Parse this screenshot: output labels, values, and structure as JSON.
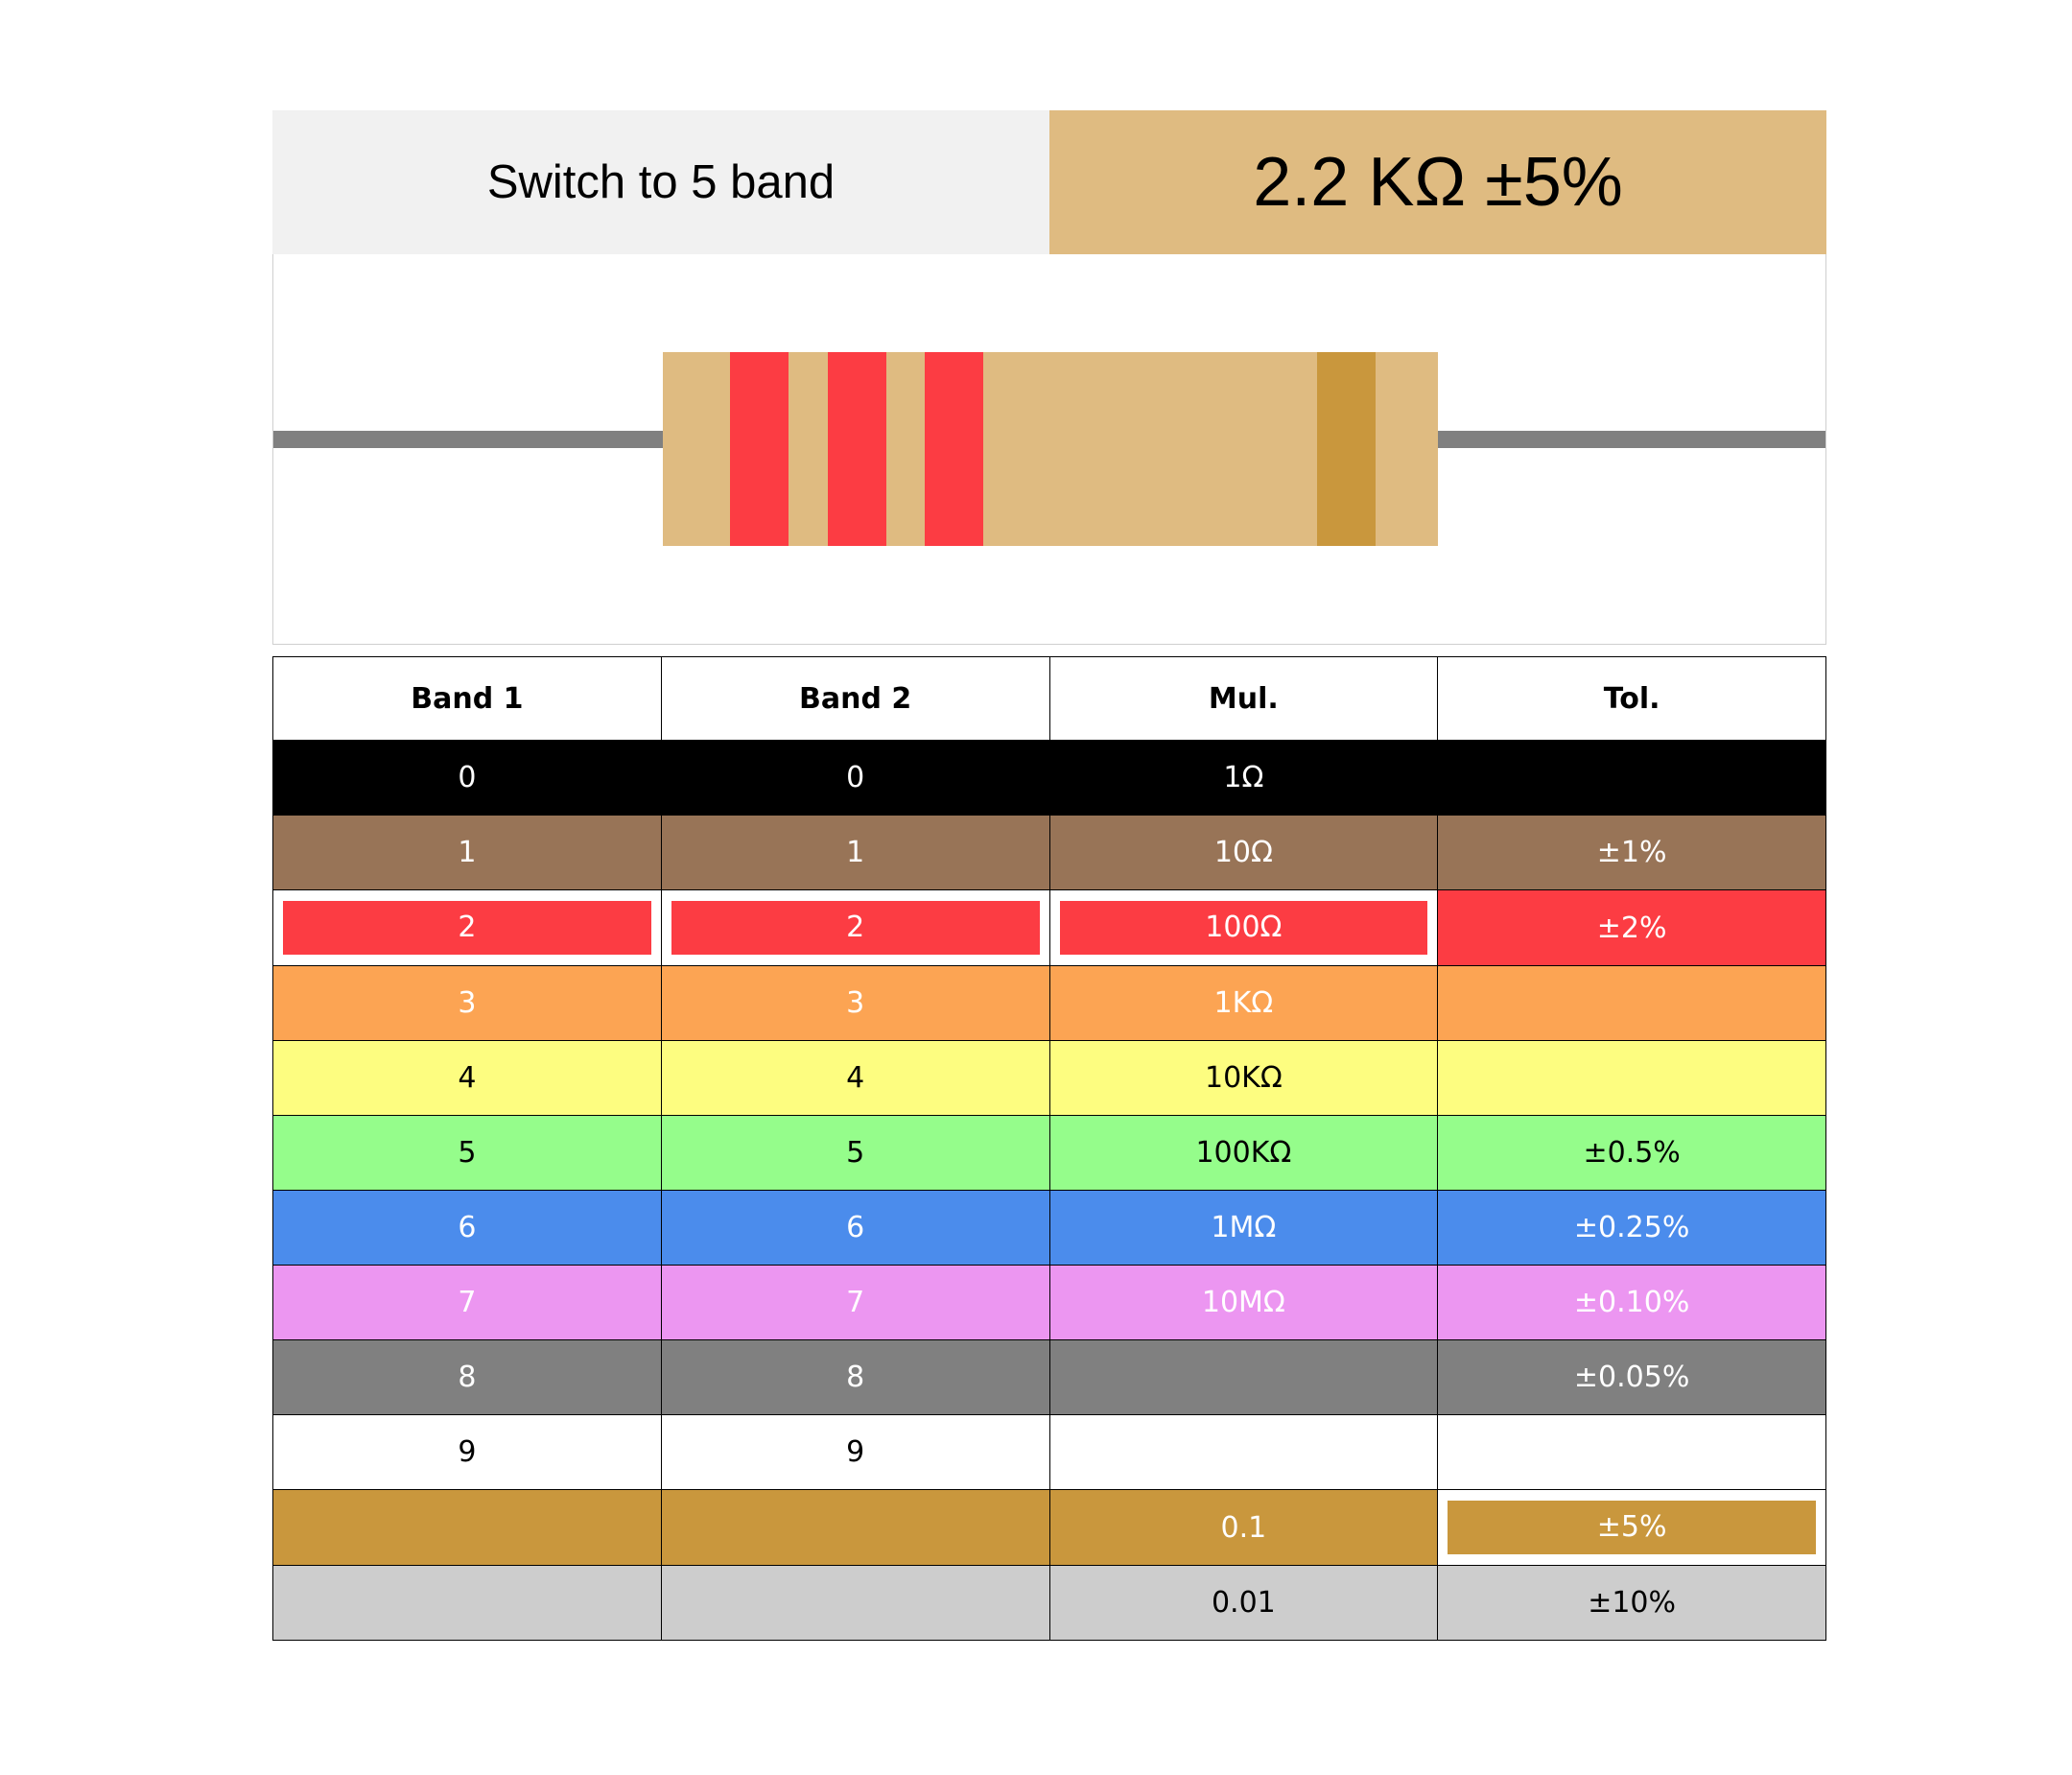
{
  "header": {
    "switch_label": "Switch to 5 band",
    "value_label": "2.2 KΩ ±5%"
  },
  "resistor": {
    "body_color": "#dfbb81",
    "lead_color": "#808080",
    "bands": [
      "#fc3c43",
      "#fc3c43",
      "#fc3c43",
      "#c9973d"
    ]
  },
  "table": {
    "headers": [
      "Band 1",
      "Band 2",
      "Mul.",
      "Tol."
    ],
    "rows": [
      {
        "color": "#000000",
        "text_color": "#ffffff",
        "cells": [
          "0",
          "0",
          "1Ω",
          ""
        ]
      },
      {
        "color": "#987457",
        "text_color": "#ffffff",
        "cells": [
          "1",
          "1",
          "10Ω",
          "±1%"
        ]
      },
      {
        "color": "#fc3c43",
        "text_color": "#ffffff",
        "cells": [
          "2",
          "2",
          "100Ω",
          "±2%"
        ]
      },
      {
        "color": "#fca453",
        "text_color": "#ffffff",
        "cells": [
          "3",
          "3",
          "1KΩ",
          ""
        ]
      },
      {
        "color": "#fdfd80",
        "text_color": "#000000",
        "cells": [
          "4",
          "4",
          "10KΩ",
          ""
        ]
      },
      {
        "color": "#95fd8b",
        "text_color": "#000000",
        "cells": [
          "5",
          "5",
          "100KΩ",
          "±0.5%"
        ]
      },
      {
        "color": "#4b8cec",
        "text_color": "#ffffff",
        "cells": [
          "6",
          "6",
          "1MΩ",
          "±0.25%"
        ]
      },
      {
        "color": "#ec96f1",
        "text_color": "#ffffff",
        "cells": [
          "7",
          "7",
          "10MΩ",
          "±0.10%"
        ]
      },
      {
        "color": "#808080",
        "text_color": "#ffffff",
        "cells": [
          "8",
          "8",
          "",
          "±0.05%"
        ]
      },
      {
        "color": "#ffffff",
        "text_color": "#000000",
        "cells": [
          "9",
          "9",
          "",
          ""
        ]
      },
      {
        "color": "#c9973d",
        "text_color": "#ffffff",
        "cells": [
          "",
          "",
          "0.1",
          "±5%"
        ]
      },
      {
        "color": "#cdcdcd",
        "text_color": "#000000",
        "cells": [
          "",
          "",
          "0.01",
          "±10%"
        ]
      }
    ],
    "selected": {
      "band1": 2,
      "band2": 2,
      "mul": 2,
      "tol": 10
    }
  }
}
